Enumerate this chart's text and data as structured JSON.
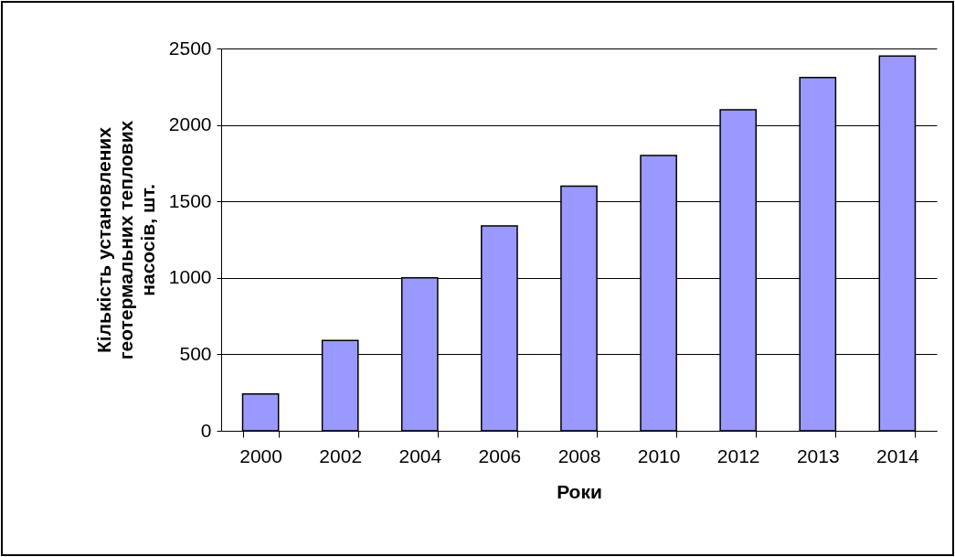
{
  "chart_data": {
    "type": "bar",
    "xlabel": "Роки",
    "ylabel": "Кількість установлених геотермальних теплових насосів, шт.",
    "categories": [
      "2000",
      "2002",
      "2004",
      "2006",
      "2008",
      "2010",
      "2012",
      "2013",
      "2014"
    ],
    "values": [
      240,
      590,
      1000,
      1340,
      1600,
      1800,
      2100,
      2310,
      2450
    ],
    "color": "#9999ff",
    "ylim": [
      0,
      2500
    ],
    "yticks": [
      0,
      500,
      1000,
      1500,
      2000,
      2500
    ],
    "grid": true
  }
}
